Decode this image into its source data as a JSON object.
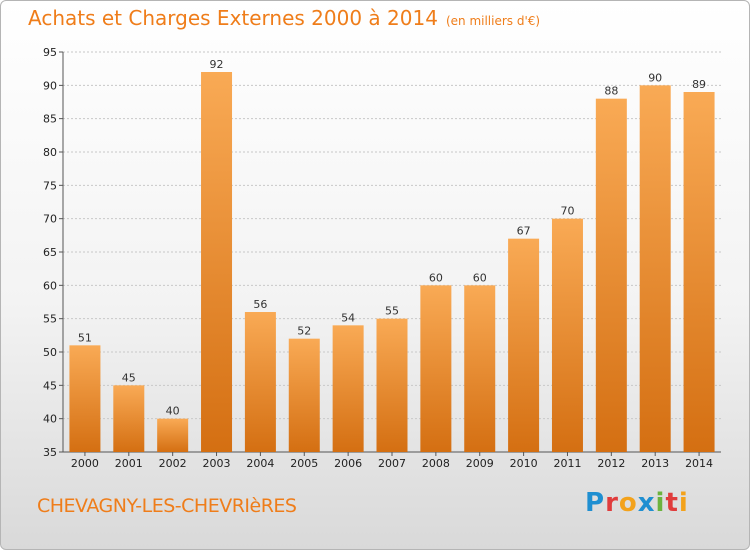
{
  "title": {
    "main": "Achats et Charges Externes 2000 à 2014",
    "unit": "(en milliers d'€)"
  },
  "commune": "CHEVAGNY-LES-CHEVRIèRES",
  "logo": {
    "text": "Proxiti",
    "letters": [
      {
        "ch": "P",
        "color": "#1f8fd1"
      },
      {
        "ch": "r",
        "color": "#e03c3c"
      },
      {
        "ch": "o",
        "color": "#f3a21b"
      },
      {
        "ch": "x",
        "color": "#1f8fd1"
      },
      {
        "ch": "i",
        "color": "#6cb33e"
      },
      {
        "ch": "t",
        "color": "#e03c3c"
      },
      {
        "ch": "i",
        "color": "#f3a21b"
      }
    ]
  },
  "colors": {
    "bar_top": "#f9aa55",
    "bar_bottom": "#d46f12",
    "title": "#ef7d1a",
    "grid": "#c8c8c8"
  },
  "chart_data": {
    "type": "bar",
    "title": "Achats et Charges Externes 2000 à 2014",
    "subtitle": "(en milliers d'€)",
    "categories": [
      "2000",
      "2001",
      "2002",
      "2003",
      "2004",
      "2005",
      "2006",
      "2007",
      "2008",
      "2009",
      "2010",
      "2011",
      "2012",
      "2013",
      "2014"
    ],
    "values": [
      51,
      45,
      40,
      92,
      56,
      52,
      54,
      55,
      60,
      60,
      67,
      70,
      88,
      90,
      89
    ],
    "ylim": [
      35,
      95
    ],
    "yticks": [
      35,
      40,
      45,
      50,
      55,
      60,
      65,
      70,
      75,
      80,
      85,
      90,
      95
    ],
    "grid": "horizontal-dashed",
    "legend": "none",
    "data_labels": true
  }
}
